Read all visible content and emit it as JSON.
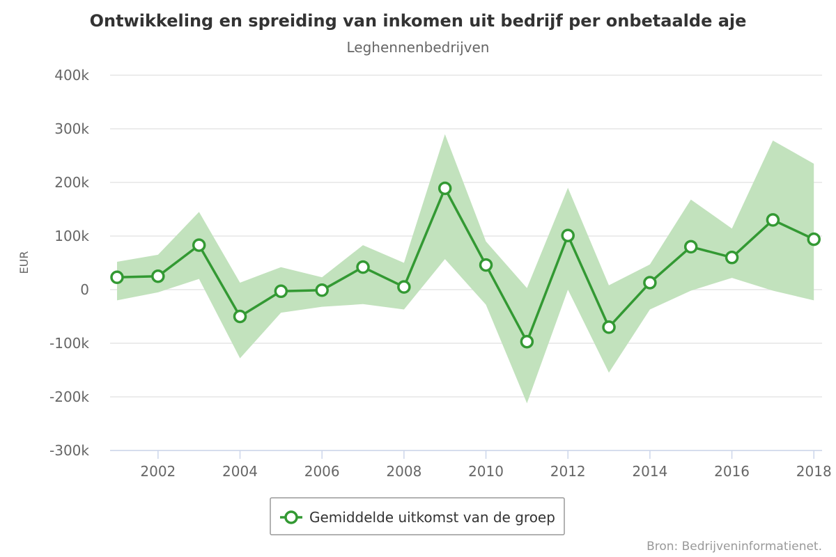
{
  "chart_data": {
    "type": "line",
    "title": "Ontwikkeling en spreiding van inkomen uit bedrijf per onbetaalde aje",
    "subtitle": "Leghennenbedrijven",
    "xlabel": "",
    "ylabel": "EUR",
    "x": [
      2001,
      2002,
      2003,
      2004,
      2005,
      2006,
      2007,
      2008,
      2009,
      2010,
      2011,
      2012,
      2013,
      2014,
      2015,
      2016,
      2017,
      2018
    ],
    "xticks": [
      "2002",
      "2004",
      "2006",
      "2008",
      "2010",
      "2012",
      "2014",
      "2016",
      "2018"
    ],
    "xtick_values": [
      2002,
      2004,
      2006,
      2008,
      2010,
      2012,
      2014,
      2016,
      2018
    ],
    "ylim": [
      -300000,
      400000
    ],
    "yticks": [
      "400k",
      "300k",
      "200k",
      "100k",
      "0",
      "-100k",
      "-200k",
      "-300k"
    ],
    "ytick_values": [
      400000,
      300000,
      200000,
      100000,
      0,
      -100000,
      -200000,
      -300000
    ],
    "series": [
      {
        "name": "Gemiddelde uitkomst van de groep",
        "values": [
          23000,
          25000,
          83000,
          -50000,
          -3000,
          -1000,
          42000,
          5000,
          189000,
          46000,
          -97000,
          101000,
          -70000,
          13000,
          80000,
          60000,
          130000,
          94000
        ],
        "color": "#339933"
      }
    ],
    "band": {
      "upper": [
        52000,
        65000,
        145000,
        13000,
        42000,
        23000,
        83000,
        50000,
        290000,
        90000,
        3000,
        190000,
        8000,
        47000,
        168000,
        114000,
        278000,
        235000
      ],
      "lower": [
        -20000,
        -5000,
        20000,
        -128000,
        -43000,
        -32000,
        -27000,
        -37000,
        57000,
        -28000,
        -212000,
        0,
        -155000,
        -37000,
        -2000,
        22000,
        -2000,
        -20000
      ],
      "color": "#c2e2bd"
    },
    "grid": true,
    "legend": "bottom-center",
    "credits": "Bron: Bedrijveninformatienet."
  }
}
